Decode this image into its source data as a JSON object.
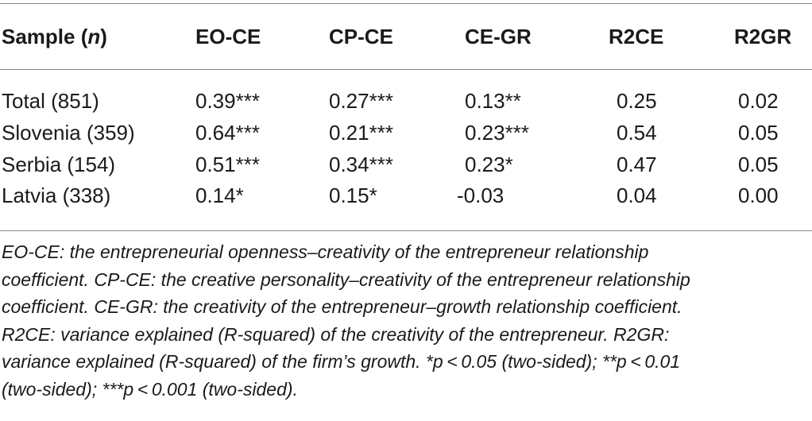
{
  "table": {
    "header": {
      "sample_label": "Sample (",
      "sample_n": "n",
      "sample_close": ")",
      "columns": [
        "EO-CE",
        "CP-CE",
        "CE-GR",
        "R2CE",
        "R2GR"
      ]
    },
    "rows": [
      {
        "sample": "Total (851)",
        "values": [
          "0.39***",
          "0.27***",
          "0.13**",
          "0.25",
          "0.02"
        ]
      },
      {
        "sample": "Slovenia (359)",
        "values": [
          "0.64***",
          "0.21***",
          "0.23***",
          "0.54",
          "0.05"
        ]
      },
      {
        "sample": "Serbia (154)",
        "values": [
          "0.51***",
          "0.34***",
          "0.23*",
          "0.47",
          "0.05"
        ]
      },
      {
        "sample": "Latvia (338)",
        "values": [
          "0.14*",
          "0.15*",
          "-0.03",
          "0.04",
          "0.00"
        ]
      }
    ]
  },
  "footnote": {
    "lines": [
      "EO-CE: the entrepreneurial openness–creativity of the entrepreneur relationship",
      "coefficient. CP-CE: the creative personality–creativity of the entrepreneur relationship",
      "coefficient. CE-GR: the creativity of the entrepreneur–growth relationship coefficient.",
      "R2CE: variance explained (R-squared) of the creativity of the entrepreneur. R2GR:",
      "variance explained (R-squared) of the firm’s growth.  *p < 0.05 (two-sided);  **p < 0.01",
      "(two-sided);  ***p < 0.001 (two-sided)."
    ]
  }
}
